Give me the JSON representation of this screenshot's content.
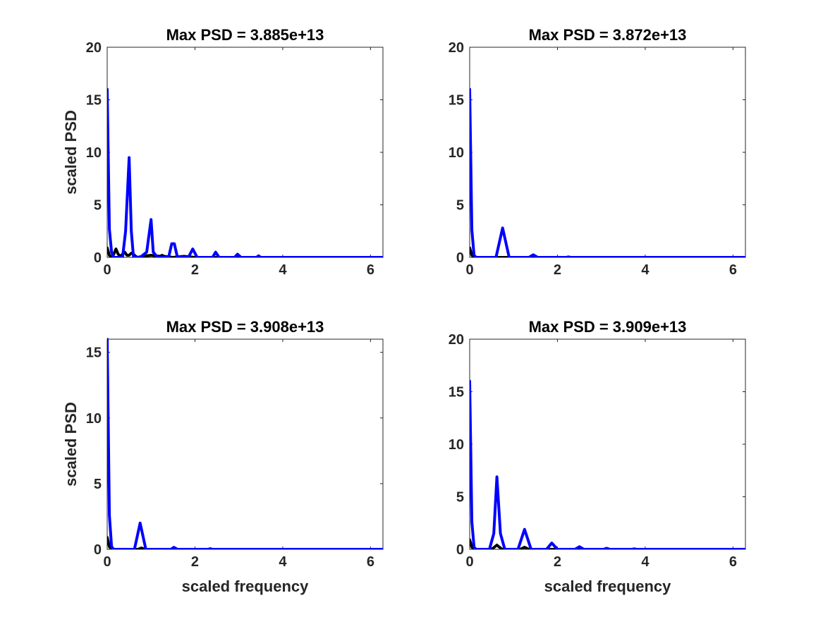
{
  "chart_data": [
    {
      "type": "line",
      "title": "Max PSD = 3.885e+13",
      "xlabel": "",
      "ylabel": "scaled PSD",
      "xlim": [
        0,
        6.2832
      ],
      "ylim": [
        0,
        20
      ],
      "xticks": [
        0,
        2,
        4,
        6
      ],
      "yticks": [
        0,
        5,
        10,
        15,
        20
      ],
      "grid": false,
      "series": [
        {
          "color": "#000000",
          "x": [
            0,
            0.05,
            0.1,
            0.15,
            0.2,
            0.25,
            0.3,
            0.35,
            0.4,
            0.45,
            0.5,
            0.55,
            0.6,
            0.65,
            0.7,
            0.8,
            1.0,
            1.2,
            1.25,
            1.3,
            1.5,
            1.75,
            2.0,
            2.5,
            3.0,
            6.2832
          ],
          "y": [
            0.9,
            0.2,
            0.0,
            0.3,
            0.8,
            0.3,
            0.1,
            0.3,
            0.5,
            0.2,
            0.2,
            0.4,
            0.3,
            0.1,
            0.0,
            0.1,
            0.2,
            0.1,
            0.2,
            0.1,
            0.0,
            0.1,
            0.0,
            0.0,
            0.0,
            0.0
          ]
        },
        {
          "color": "#0000ff",
          "x": [
            0,
            0.05,
            0.1,
            0.15,
            0.35,
            0.42,
            0.5,
            0.55,
            0.6,
            0.75,
            0.9,
            1.0,
            1.05,
            1.15,
            1.4,
            1.47,
            1.53,
            1.6,
            1.85,
            1.95,
            2.05,
            2.4,
            2.47,
            2.55,
            2.9,
            2.97,
            3.05,
            3.4,
            3.45,
            3.5,
            3.6,
            6.2832
          ],
          "y": [
            16.0,
            2.7,
            0.5,
            0.0,
            0.0,
            2.5,
            9.5,
            2.5,
            0.0,
            0.0,
            0.5,
            3.6,
            0.5,
            0.0,
            0.0,
            1.3,
            1.3,
            0.0,
            0.0,
            0.8,
            0.0,
            0.0,
            0.5,
            0.0,
            0.0,
            0.3,
            0.0,
            0.0,
            0.15,
            0.0,
            0.0,
            0.0
          ]
        }
      ]
    },
    {
      "type": "line",
      "title": "Max PSD = 3.872e+13",
      "xlabel": "",
      "ylabel": "",
      "xlim": [
        0,
        6.2832
      ],
      "ylim": [
        0,
        20
      ],
      "xticks": [
        0,
        2,
        4,
        6
      ],
      "yticks": [
        0,
        5,
        10,
        15,
        20
      ],
      "grid": false,
      "series": [
        {
          "color": "#000000",
          "x": [
            0,
            0.05,
            0.1,
            0.2,
            6.2832
          ],
          "y": [
            0.9,
            0.2,
            0.0,
            0.0,
            0.0
          ]
        },
        {
          "color": "#0000ff",
          "x": [
            0,
            0.05,
            0.1,
            0.15,
            0.6,
            0.75,
            0.9,
            1.35,
            1.45,
            1.55,
            1.7,
            2.2,
            2.25,
            2.3,
            6.2832
          ],
          "y": [
            16.0,
            2.6,
            0.2,
            0.0,
            0.0,
            2.8,
            0.0,
            0.0,
            0.25,
            0.0,
            0.0,
            0.0,
            0.05,
            0.0,
            0.0
          ]
        }
      ]
    },
    {
      "type": "line",
      "title": "Max PSD = 3.908e+13",
      "xlabel": "scaled frequency",
      "ylabel": "scaled PSD",
      "xlim": [
        0,
        6.2832
      ],
      "ylim": [
        0,
        16
      ],
      "xticks": [
        0,
        2,
        4,
        6
      ],
      "yticks": [
        0,
        5,
        10,
        15
      ],
      "grid": false,
      "series": [
        {
          "color": "#000000",
          "x": [
            0,
            0.05,
            0.1,
            0.7,
            0.78,
            0.86,
            6.2832
          ],
          "y": [
            0.9,
            0.2,
            0.0,
            0.0,
            0.1,
            0.0,
            0.0
          ]
        },
        {
          "color": "#0000ff",
          "x": [
            0,
            0.05,
            0.1,
            0.15,
            0.62,
            0.75,
            0.88,
            1.45,
            1.52,
            1.6,
            2.3,
            2.35,
            2.4,
            6.2832
          ],
          "y": [
            16.0,
            2.6,
            0.2,
            0.0,
            0.0,
            2.0,
            0.0,
            0.0,
            0.15,
            0.0,
            0.0,
            0.05,
            0.0,
            0.0
          ]
        }
      ]
    },
    {
      "type": "line",
      "title": "Max PSD = 3.909e+13",
      "xlabel": "scaled frequency",
      "ylabel": "",
      "xlim": [
        0,
        6.2832
      ],
      "ylim": [
        0,
        20
      ],
      "xticks": [
        0,
        2,
        4,
        6
      ],
      "yticks": [
        0,
        5,
        10,
        15,
        20
      ],
      "grid": false,
      "series": [
        {
          "color": "#000000",
          "x": [
            0,
            0.05,
            0.1,
            0.5,
            0.62,
            0.74,
            1.15,
            1.25,
            1.35,
            6.2832
          ],
          "y": [
            0.9,
            0.2,
            0.0,
            0.0,
            0.4,
            0.0,
            0.0,
            0.2,
            0.0,
            0.0
          ]
        },
        {
          "color": "#0000ff",
          "x": [
            0,
            0.05,
            0.1,
            0.15,
            0.45,
            0.55,
            0.62,
            0.7,
            0.8,
            1.1,
            1.25,
            1.4,
            1.75,
            1.87,
            2.0,
            2.4,
            2.5,
            2.6,
            3.05,
            3.12,
            3.2,
            3.7,
            3.75,
            3.8,
            6.2832
          ],
          "y": [
            16.0,
            2.6,
            0.2,
            0.0,
            0.0,
            1.5,
            6.9,
            1.5,
            0.0,
            0.0,
            1.9,
            0.0,
            0.0,
            0.6,
            0.0,
            0.0,
            0.25,
            0.0,
            0.0,
            0.1,
            0.0,
            0.0,
            0.05,
            0.0,
            0.0
          ]
        }
      ]
    }
  ]
}
